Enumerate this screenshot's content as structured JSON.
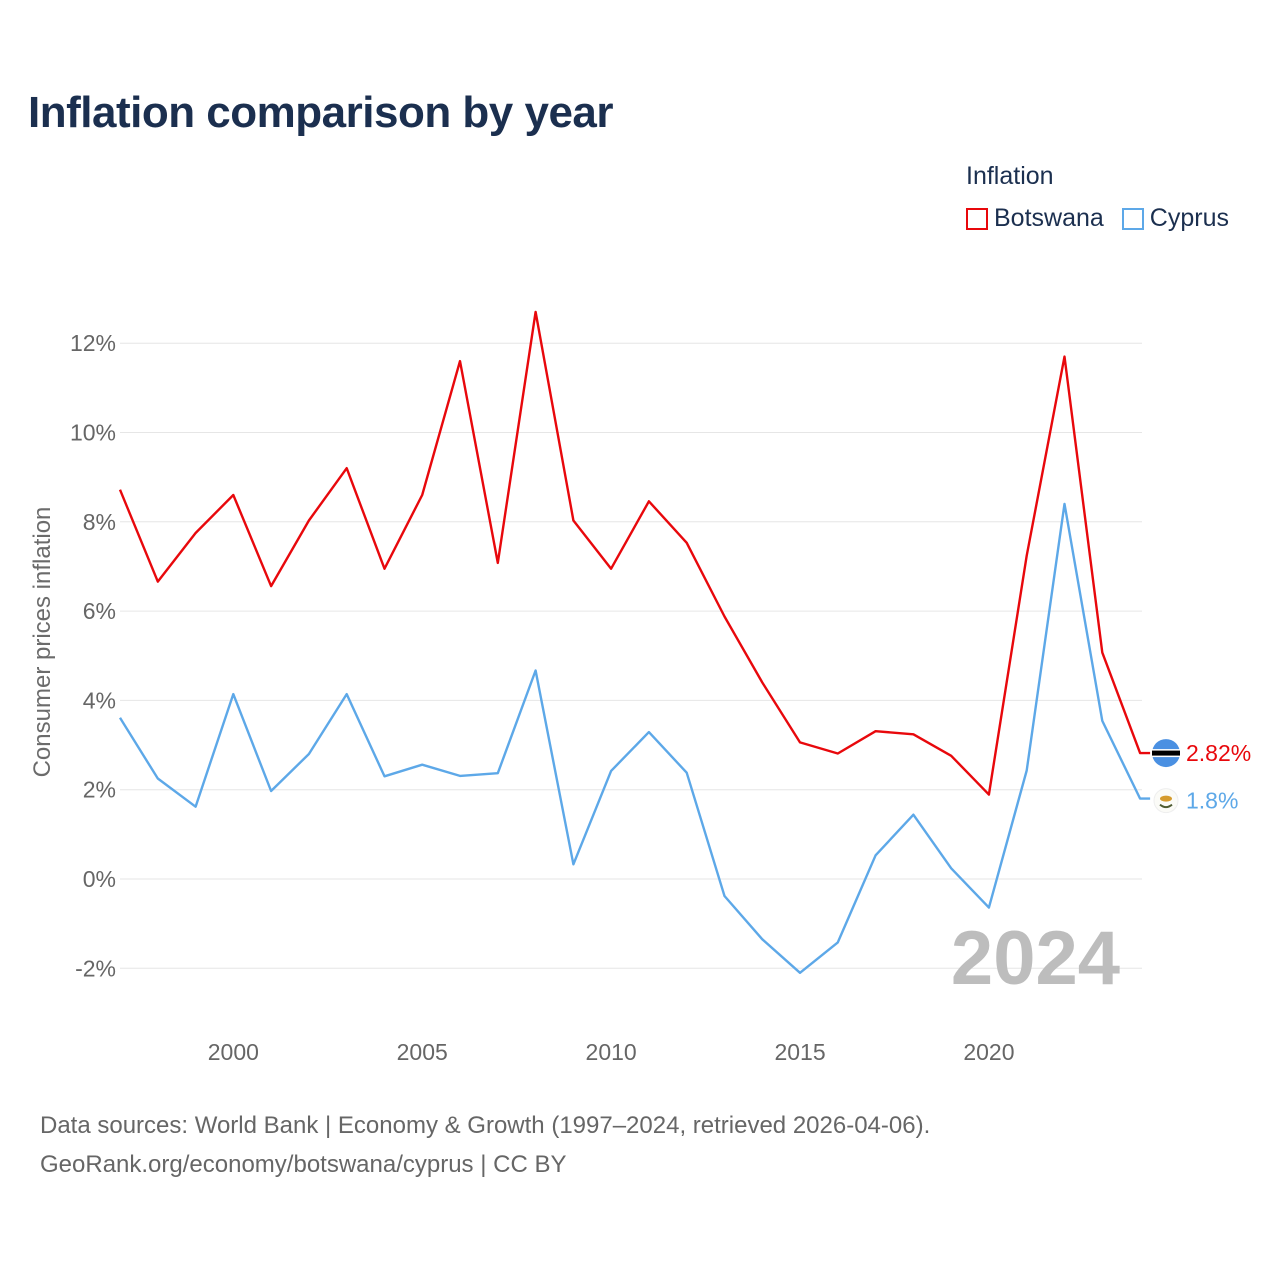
{
  "title": "Inflation comparison by year",
  "legend": {
    "title": "Inflation",
    "items": [
      {
        "name": "Botswana",
        "color": "#e8080c"
      },
      {
        "name": "Cyprus",
        "color": "#5da8e8"
      }
    ]
  },
  "watermark_year": "2024",
  "source": {
    "line1": "Data sources: World Bank | Economy & Growth (1997–2024, retrieved 2026-04-06).",
    "line2": "GeoRank.org/economy/botswana/cyprus | CC BY"
  },
  "chart_data": {
    "type": "line",
    "title": "Inflation comparison by year",
    "xlabel": "",
    "ylabel": "Consumer prices inflation",
    "xlim": [
      1997,
      2024
    ],
    "ylim": [
      -3,
      13
    ],
    "x_ticks": [
      2000,
      2005,
      2010,
      2015,
      2020
    ],
    "y_ticks": [
      -2,
      0,
      2,
      4,
      6,
      8,
      10,
      12
    ],
    "y_tick_labels": [
      "-2%",
      "0%",
      "2%",
      "4%",
      "6%",
      "8%",
      "10%",
      "12%"
    ],
    "grid": true,
    "legend_position": "top-right",
    "x": [
      1997,
      1998,
      1999,
      2000,
      2001,
      2002,
      2003,
      2004,
      2005,
      2006,
      2007,
      2008,
      2009,
      2010,
      2011,
      2012,
      2013,
      2014,
      2015,
      2016,
      2017,
      2018,
      2019,
      2020,
      2021,
      2022,
      2023,
      2024
    ],
    "series": [
      {
        "name": "Botswana",
        "color": "#e8080c",
        "end_label": "2.82%",
        "values": [
          8.72,
          6.66,
          7.75,
          8.6,
          6.56,
          8.03,
          9.2,
          6.95,
          8.6,
          11.6,
          7.08,
          12.7,
          8.03,
          6.95,
          8.46,
          7.53,
          5.88,
          4.4,
          3.06,
          2.81,
          3.31,
          3.24,
          2.76,
          1.89,
          7.24,
          11.7,
          5.07,
          2.82
        ]
      },
      {
        "name": "Cyprus",
        "color": "#5da8e8",
        "end_label": "1.8%",
        "values": [
          3.61,
          2.25,
          1.62,
          4.14,
          1.97,
          2.8,
          4.14,
          2.3,
          2.56,
          2.31,
          2.37,
          4.67,
          0.33,
          2.42,
          3.29,
          2.38,
          -0.38,
          -1.35,
          -2.1,
          -1.42,
          0.53,
          1.44,
          0.24,
          -0.64,
          2.43,
          8.4,
          3.54,
          1.8
        ]
      }
    ]
  }
}
